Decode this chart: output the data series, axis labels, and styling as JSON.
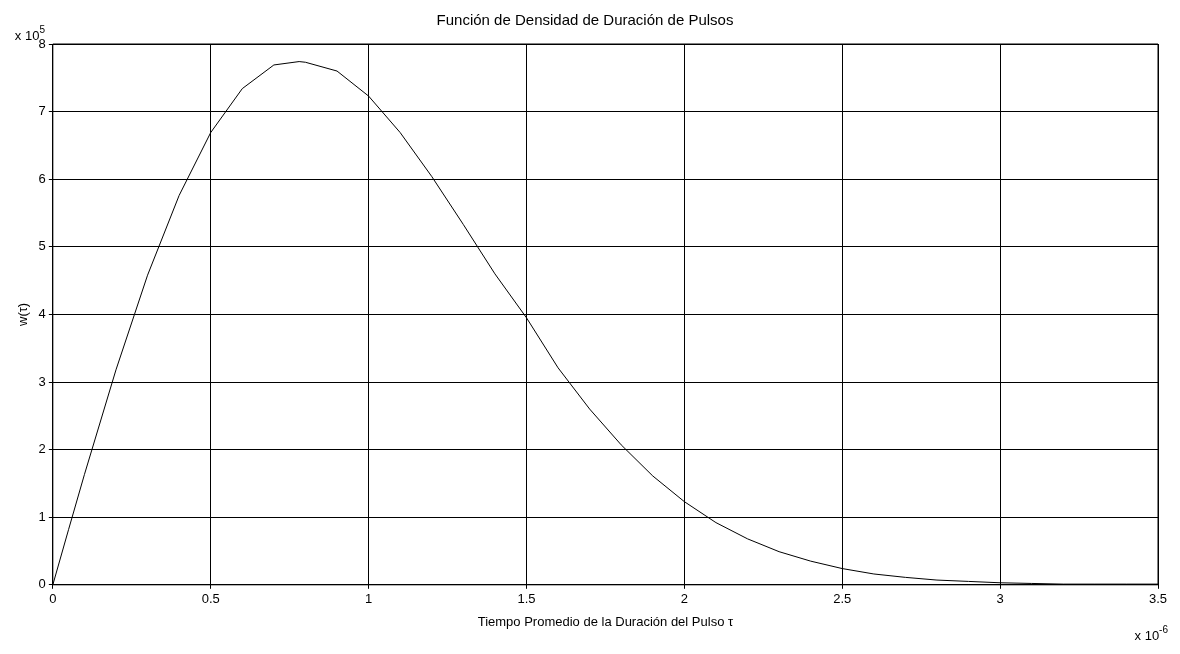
{
  "chart_data": {
    "type": "line",
    "title": "Función de Densidad de Duración de Pulsos",
    "xlabel": "Tiempo Promedio de la Duración del Pulso τ",
    "ylabel": "w(τ)",
    "annotations": [
      "x 10$^{5}$",
      "x 10$^{-6}$"
    ],
    "series": [
      {
        "color": "#000000",
        "x": [
          0,
          0.05,
          0.1,
          0.2,
          0.3,
          0.4,
          0.5,
          0.6,
          0.7,
          0.78,
          0.8,
          0.9,
          1.0,
          1.1,
          1.2,
          1.3,
          1.4,
          1.5,
          1.6,
          1.7,
          1.8,
          1.9,
          2.0,
          2.1,
          2.2,
          2.3,
          2.4,
          2.5,
          2.6,
          2.7,
          2.8,
          2.9,
          3.0,
          3.1,
          3.2,
          3.3,
          3.4,
          3.5
        ],
        "values": [
          0,
          0.82,
          1.63,
          3.18,
          4.58,
          5.76,
          6.69,
          7.34,
          7.69,
          7.74,
          7.73,
          7.6,
          7.23,
          6.69,
          6.04,
          5.33,
          4.6,
          3.95,
          3.21,
          2.6,
          2.07,
          1.61,
          1.23,
          0.92,
          0.68,
          0.49,
          0.35,
          0.24,
          0.16,
          0.11,
          0.07,
          0.05,
          0.03,
          0.02,
          0.01,
          0.01,
          0.01,
          0.01
        ]
      }
    ],
    "xlim": [
      0,
      3.5
    ],
    "xticks": [
      0,
      0.5,
      1,
      1.5,
      2,
      2.5,
      3,
      3.5
    ],
    "ylim": [
      0,
      8
    ],
    "yticks": [
      0,
      1,
      2,
      3,
      4,
      5,
      6,
      7,
      8
    ],
    "grid": true,
    "legend": false,
    "marker": "none",
    "line_style": "solid"
  }
}
